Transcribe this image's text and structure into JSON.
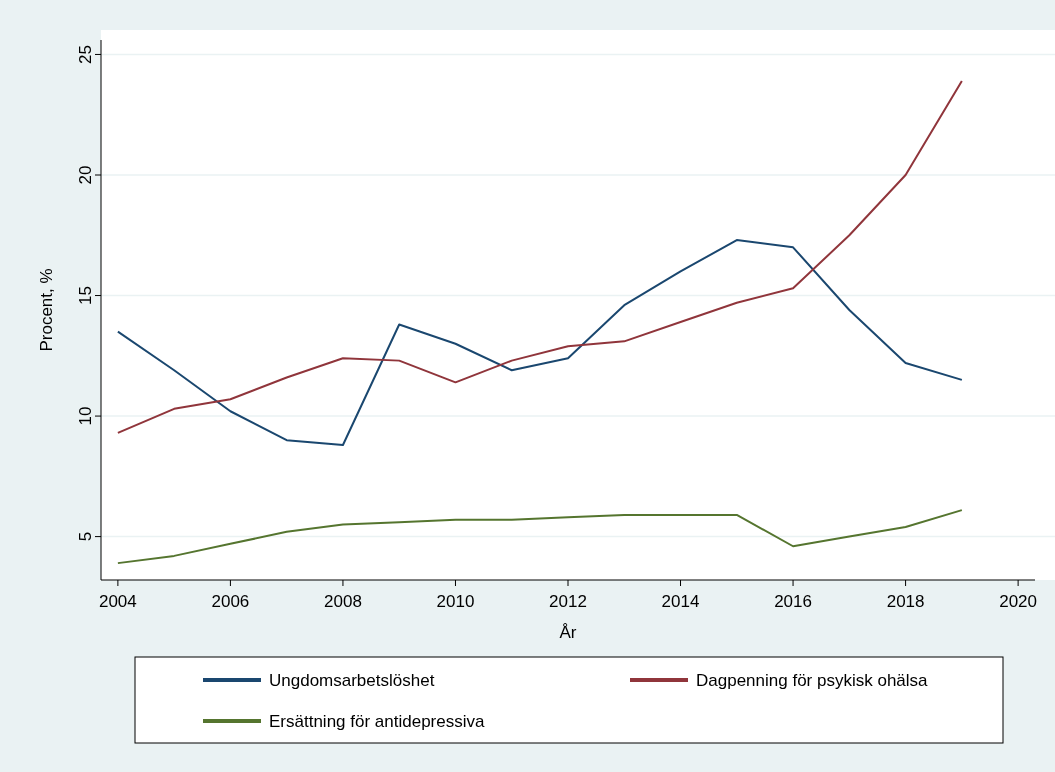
{
  "chart_data": {
    "type": "line",
    "xlabel": "År",
    "ylabel": "Procent, %",
    "x": [
      2004,
      2005,
      2006,
      2007,
      2008,
      2009,
      2010,
      2011,
      2012,
      2013,
      2014,
      2015,
      2016,
      2017,
      2018,
      2019
    ],
    "series": [
      {
        "name": "Ungdomsarbetslöshet",
        "color": "#1a476f",
        "values": [
          13.5,
          11.9,
          10.2,
          9.0,
          8.8,
          13.8,
          13.0,
          11.9,
          12.4,
          14.6,
          16.0,
          17.3,
          17.0,
          14.4,
          12.2,
          11.5
        ]
      },
      {
        "name": "Dagpenning för psykisk ohälsa",
        "color": "#90353b",
        "values": [
          9.3,
          10.3,
          10.7,
          11.6,
          12.4,
          12.3,
          11.4,
          12.3,
          12.9,
          13.1,
          13.9,
          14.7,
          15.3,
          17.5,
          20.0,
          23.9
        ]
      },
      {
        "name": "Ersättning för antidepressiva",
        "color": "#55752f",
        "values": [
          3.9,
          4.2,
          4.7,
          5.2,
          5.5,
          5.6,
          5.7,
          5.7,
          5.8,
          5.9,
          5.9,
          5.9,
          4.6,
          5.0,
          5.4,
          6.1
        ]
      }
    ],
    "xlim": [
      2003.7,
      2020.3
    ],
    "xticks": [
      2004,
      2006,
      2008,
      2010,
      2012,
      2014,
      2016,
      2018,
      2020
    ],
    "ylim": [
      3.2,
      25.6
    ],
    "yticks": [
      5,
      10,
      15,
      20,
      25
    ],
    "grid": "y",
    "legend": "bottom",
    "marker": "none",
    "line_style": "solid"
  }
}
